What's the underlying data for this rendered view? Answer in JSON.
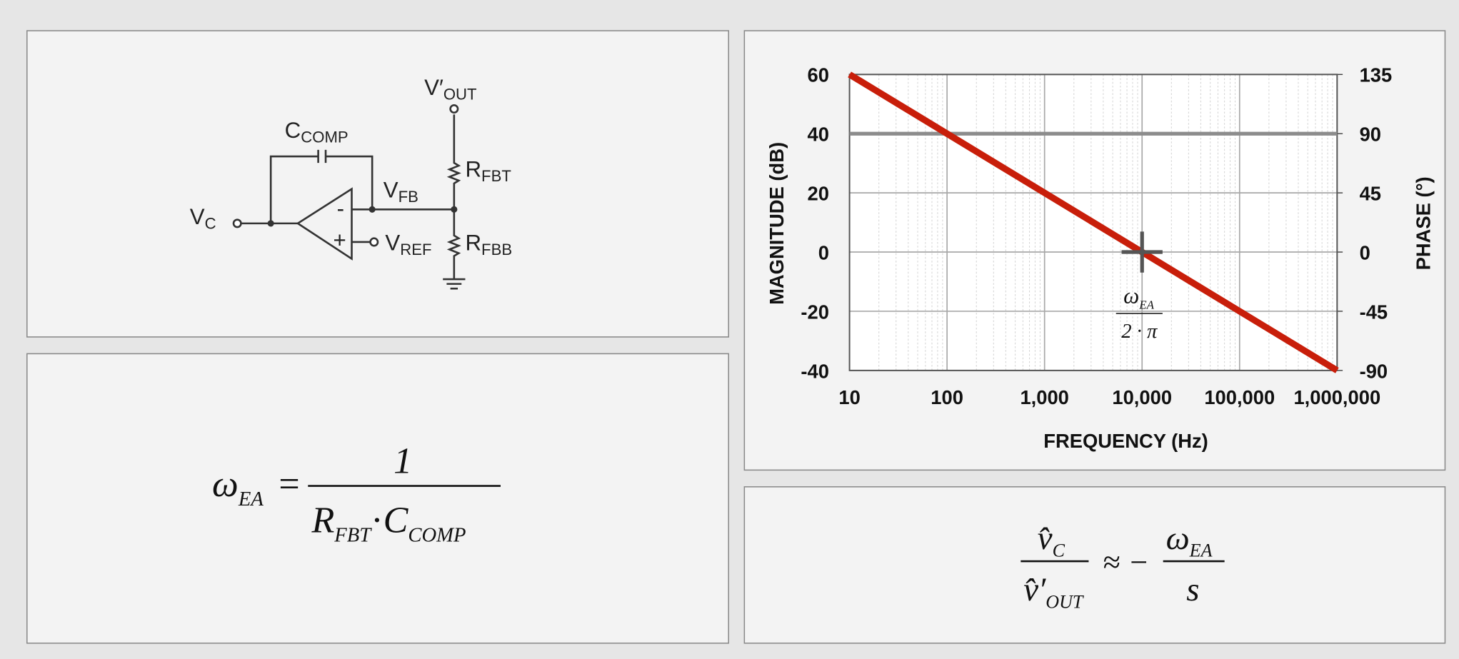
{
  "circuit": {
    "v_out": {
      "main": "V′",
      "sub": "OUT"
    },
    "c_comp": {
      "main": "C",
      "sub": "COMP"
    },
    "r_fbt": {
      "main": "R",
      "sub": "FBT"
    },
    "v_fb": {
      "main": "V",
      "sub": "FB"
    },
    "v_c": {
      "main": "V",
      "sub": "C"
    },
    "v_ref": {
      "main": "V",
      "sub": "REF"
    },
    "r_fbb": {
      "main": "R",
      "sub": "FBB"
    },
    "minus": "-",
    "plus": "+"
  },
  "equation_1": {
    "lhs": "ω",
    "lhs_sub": "EA",
    "equals": "=",
    "numerator": "1",
    "den_1": "R",
    "den_1_sub": "FBT",
    "dot": "·",
    "den_2": "C",
    "den_2_sub": "COMP"
  },
  "equation_2": {
    "num": "v̂",
    "num_sub": "C",
    "den": "v̂′",
    "den_sub": "OUT",
    "approx": "≈ −",
    "rhs_num": "ω",
    "rhs_num_sub": "EA",
    "rhs_den": "s"
  },
  "chart_data": {
    "type": "line",
    "xlabel": "FREQUENCY (Hz)",
    "ylabel": "MAGNITUDE (dB)",
    "y2label": "PHASE (°)",
    "ylabel_color": "#c00000",
    "y2label_color": "#8c8c8c",
    "x": [
      10,
      1000000
    ],
    "series": [
      {
        "color": "#c81e0a",
        "values": [
          60,
          -40
        ]
      },
      {
        "color": "#8c8c8c",
        "values": [
          90,
          90
        ],
        "axis": "y2"
      }
    ],
    "xscale": "log",
    "xlim": [
      10,
      1000000
    ],
    "xticks": [
      10,
      100,
      {
        "value": 1000,
        "label": "1,000"
      },
      {
        "value": 10000,
        "label": "10,000"
      },
      {
        "value": 100000,
        "label": "100,000"
      },
      {
        "value": 1000000,
        "label": "1,000,000"
      }
    ],
    "ylim": [
      -40,
      60
    ],
    "yticks": [
      -40,
      -20,
      0,
      20,
      40,
      60
    ],
    "y2lim": [
      -90,
      135
    ],
    "y2ticks": [
      -90,
      -45,
      0,
      45,
      90,
      135
    ],
    "grid": true,
    "minor_grid": true,
    "annotation": {
      "x": 10000,
      "y": 0,
      "numerator": "ω",
      "numerator_sub": "EA",
      "denominator": "2 · π"
    }
  }
}
